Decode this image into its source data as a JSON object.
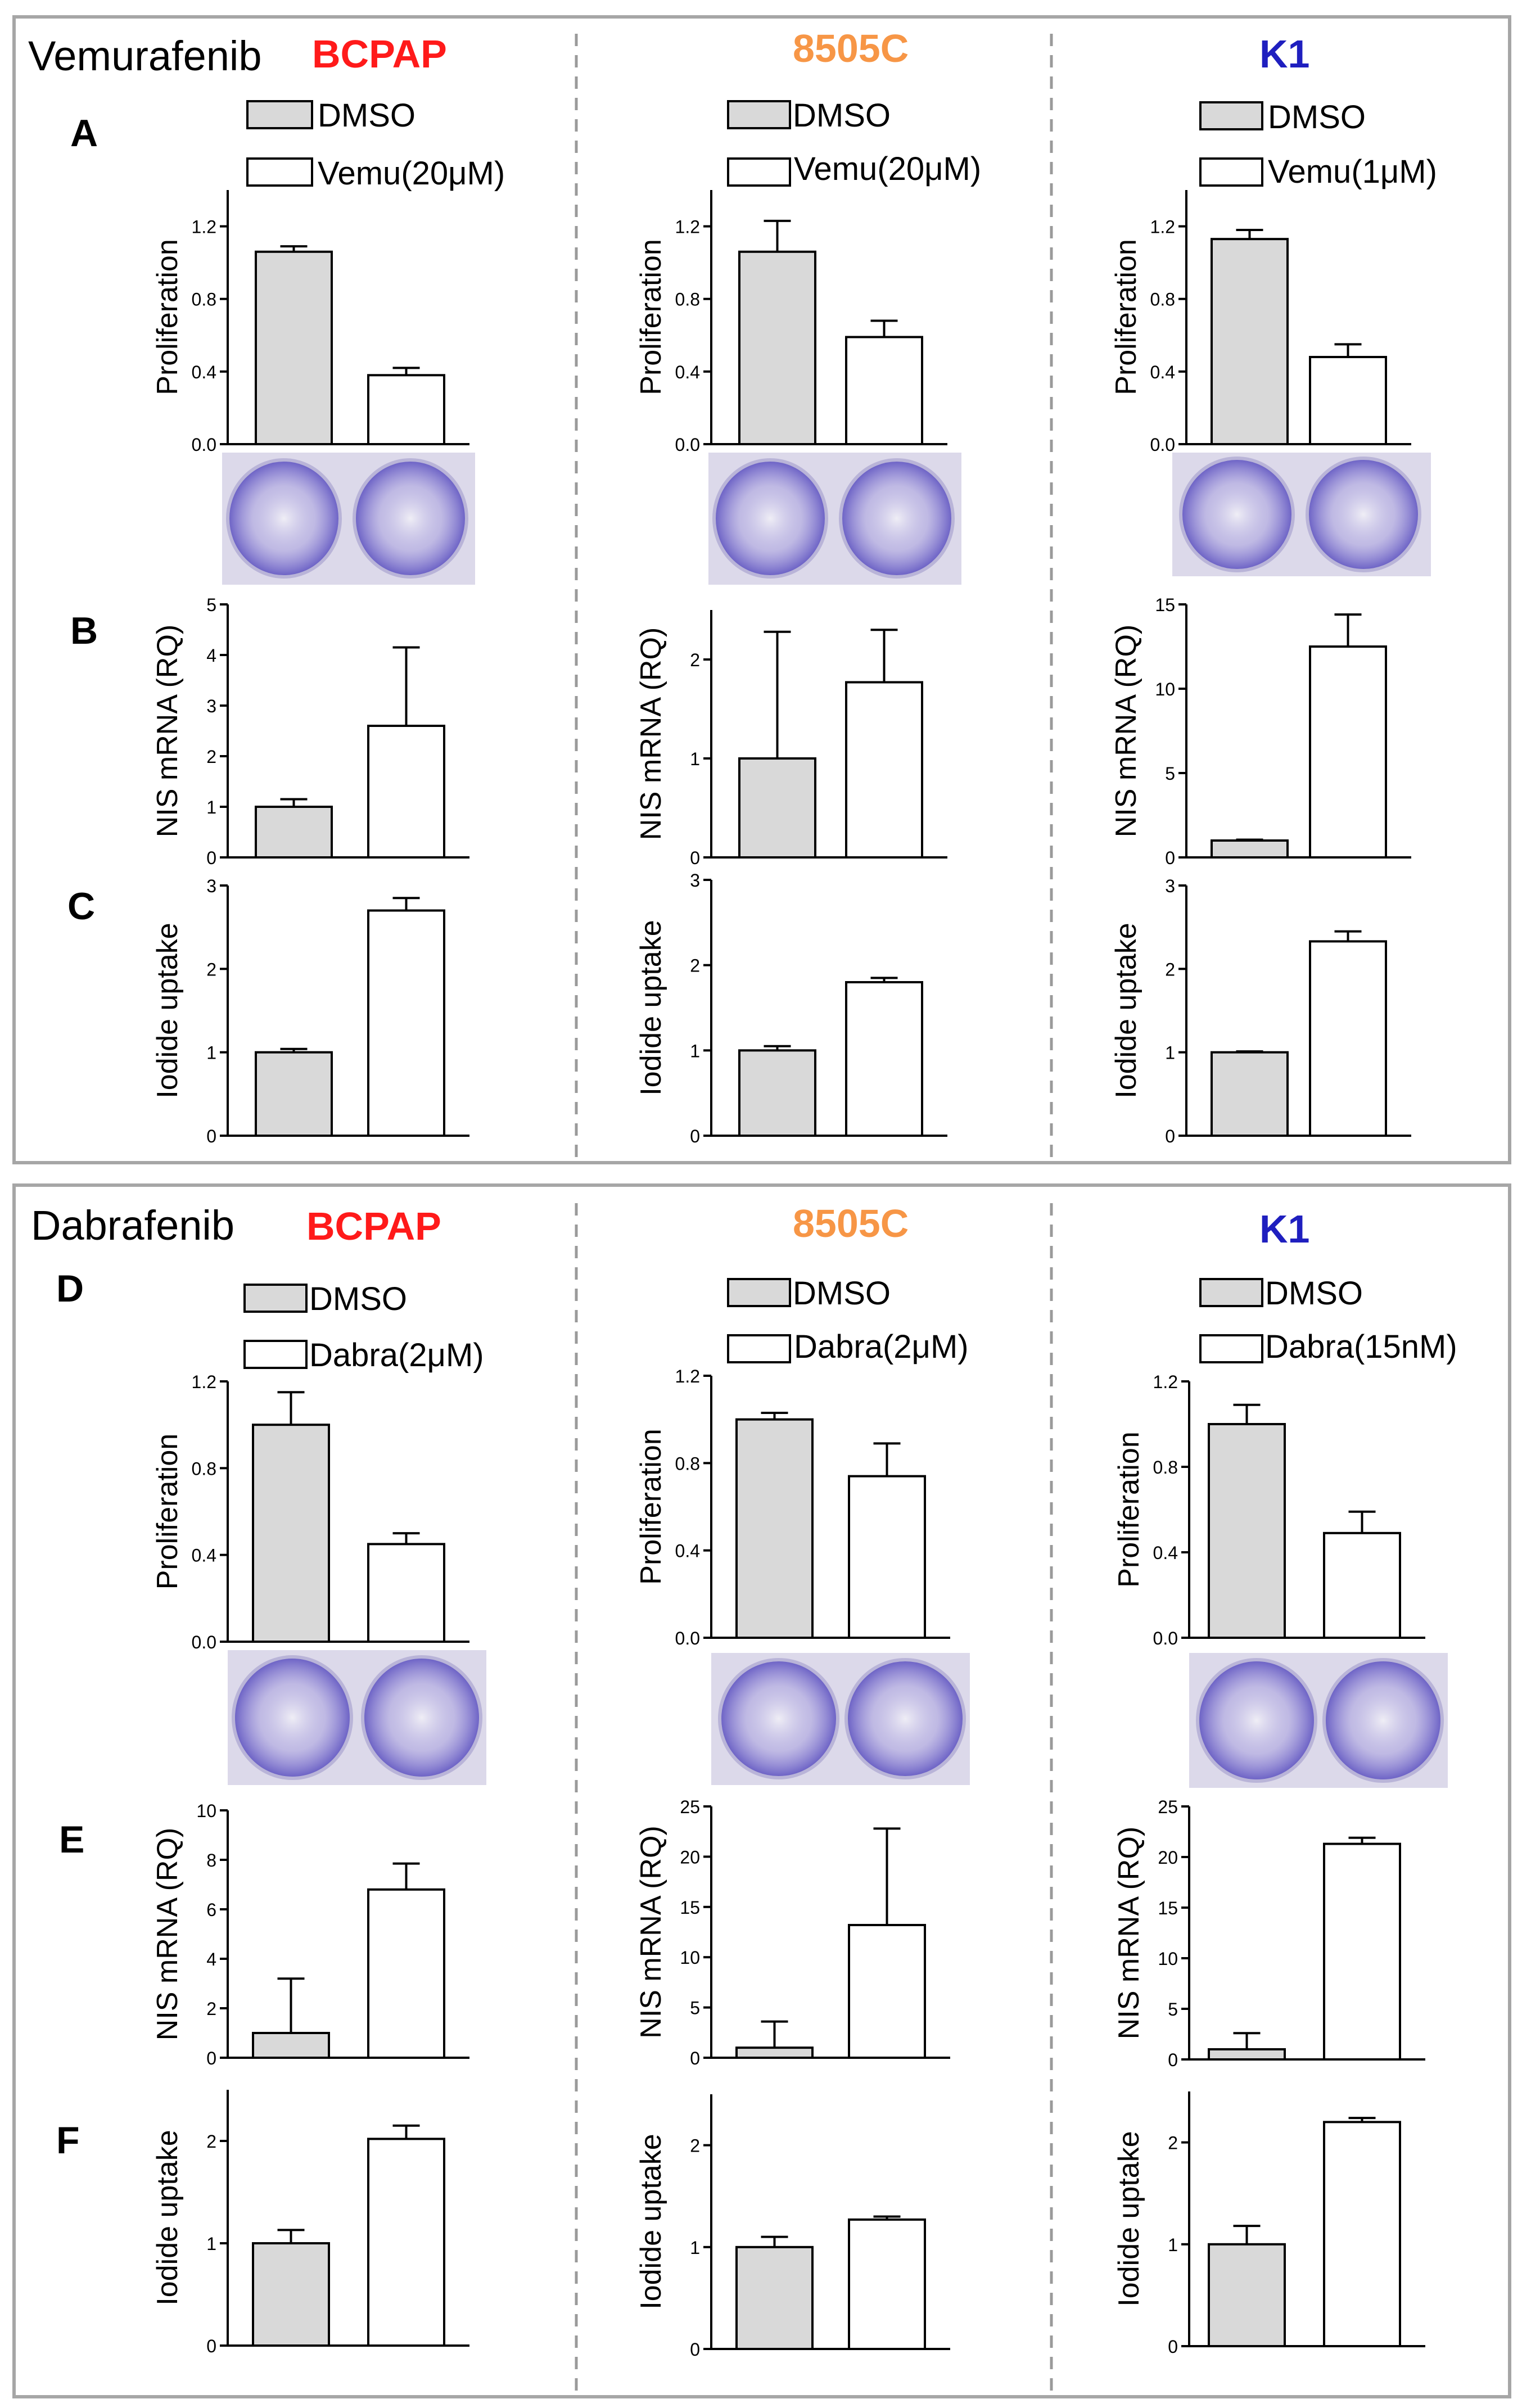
{
  "panels": [
    {
      "drug": "Vemurafenib",
      "columns": [
        {
          "cell_line": "BCPAP",
          "legend": [
            "DMSO",
            "Vemu(20μM)"
          ],
          "charts": [
            {
              "row": "A",
              "type": "bar",
              "ylabel": "Proliferation",
              "ylim": [
                0,
                1.4
              ],
              "ticks": [
                0.0,
                0.4,
                0.8,
                1.2
              ],
              "tick_labels": [
                "0.0",
                "0.4",
                "0.8",
                "1.2"
              ],
              "categories": [
                "DMSO",
                "Vemu(20μM)"
              ],
              "values": [
                1.06,
                0.38
              ],
              "errors": [
                0.03,
                0.04
              ]
            },
            {
              "row": "B",
              "type": "bar",
              "ylabel": "NIS mRNA (RQ)",
              "ylim": [
                0,
                5
              ],
              "ticks": [
                0,
                1,
                2,
                3,
                4,
                5
              ],
              "tick_labels": [
                "0",
                "1",
                "2",
                "3",
                "4",
                "5"
              ],
              "categories": [
                "DMSO",
                "Vemu(20μM)"
              ],
              "values": [
                1.0,
                2.6
              ],
              "errors": [
                0.15,
                1.55
              ]
            },
            {
              "row": "C",
              "type": "bar",
              "ylabel": "Iodide uptake",
              "ylim": [
                0,
                3
              ],
              "ticks": [
                0,
                1,
                2,
                3
              ],
              "tick_labels": [
                "0",
                "1",
                "2",
                "3"
              ],
              "categories": [
                "DMSO",
                "Vemu(20μM)"
              ],
              "values": [
                1.0,
                2.7
              ],
              "errors": [
                0.04,
                0.15
              ]
            }
          ]
        },
        {
          "cell_line": "8505C",
          "legend": [
            "DMSO",
            "Vemu(20μM)"
          ],
          "charts": [
            {
              "row": "A",
              "type": "bar",
              "ylabel": "Proliferation",
              "ylim": [
                0,
                1.4
              ],
              "ticks": [
                0.0,
                0.4,
                0.8,
                1.2
              ],
              "tick_labels": [
                "0.0",
                "0.4",
                "0.8",
                "1.2"
              ],
              "categories": [
                "DMSO",
                "Vemu(20μM)"
              ],
              "values": [
                1.06,
                0.59
              ],
              "errors": [
                0.17,
                0.09
              ]
            },
            {
              "row": "B",
              "type": "bar",
              "ylabel": "NIS mRNA (RQ)",
              "ylim": [
                0,
                2.5
              ],
              "ticks": [
                0,
                1,
                2
              ],
              "tick_labels": [
                "0",
                "1",
                "2"
              ],
              "categories": [
                "DMSO",
                "Vemu(20μM)"
              ],
              "values": [
                1.0,
                1.77
              ],
              "errors": [
                1.28,
                0.53
              ]
            },
            {
              "row": "C",
              "type": "bar",
              "ylabel": "Iodide uptake",
              "ylim": [
                0,
                3
              ],
              "ticks": [
                0,
                1,
                2,
                3
              ],
              "tick_labels": [
                "0",
                "1",
                "2",
                "3"
              ],
              "categories": [
                "DMSO",
                "Vemu(20μM)"
              ],
              "values": [
                1.0,
                1.8
              ],
              "errors": [
                0.05,
                0.05
              ]
            }
          ]
        },
        {
          "cell_line": "K1",
          "legend": [
            "DMSO",
            "Vemu(1μM)"
          ],
          "charts": [
            {
              "row": "A",
              "type": "bar",
              "ylabel": "Proliferation",
              "ylim": [
                0,
                1.4
              ],
              "ticks": [
                0.0,
                0.4,
                0.8,
                1.2
              ],
              "tick_labels": [
                "0.0",
                "0.4",
                "0.8",
                "1.2"
              ],
              "categories": [
                "DMSO",
                "Vemu(1μM)"
              ],
              "values": [
                1.13,
                0.48
              ],
              "errors": [
                0.05,
                0.07
              ]
            },
            {
              "row": "B",
              "type": "bar",
              "ylabel": "NIS mRNA (RQ)",
              "ylim": [
                0,
                15
              ],
              "ticks": [
                0,
                5,
                10,
                15
              ],
              "tick_labels": [
                "0",
                "5",
                "10",
                "15"
              ],
              "categories": [
                "DMSO",
                "Vemu(1μM)"
              ],
              "values": [
                1.0,
                12.5
              ],
              "errors": [
                0.05,
                1.9
              ]
            },
            {
              "row": "C",
              "type": "bar",
              "ylabel": "Iodide uptake",
              "ylim": [
                0,
                3
              ],
              "ticks": [
                0,
                1,
                2,
                3
              ],
              "tick_labels": [
                "0",
                "1",
                "2",
                "3"
              ],
              "categories": [
                "DMSO",
                "Vemu(1μM)"
              ],
              "values": [
                1.0,
                2.33
              ],
              "errors": [
                0.01,
                0.12
              ]
            }
          ]
        }
      ]
    },
    {
      "drug": "Dabrafenib",
      "columns": [
        {
          "cell_line": "BCPAP",
          "legend": [
            "DMSO",
            "Dabra(2μM)"
          ],
          "charts": [
            {
              "row": "D",
              "type": "bar",
              "ylabel": "Proliferation",
              "ylim": [
                0,
                1.2
              ],
              "ticks": [
                0.0,
                0.4,
                0.8,
                1.2
              ],
              "tick_labels": [
                "0.0",
                "0.4",
                "0.8",
                "1.2"
              ],
              "categories": [
                "DMSO",
                "Dabra(2μM)"
              ],
              "values": [
                1.0,
                0.45
              ],
              "errors": [
                0.15,
                0.05
              ]
            },
            {
              "row": "E",
              "type": "bar",
              "ylabel": "NIS mRNA (RQ)",
              "ylim": [
                0,
                10
              ],
              "ticks": [
                0,
                2,
                4,
                6,
                8,
                10
              ],
              "tick_labels": [
                "0",
                "2",
                "4",
                "6",
                "8",
                "10"
              ],
              "categories": [
                "DMSO",
                "Dabra(2μM)"
              ],
              "values": [
                1.0,
                6.8
              ],
              "errors": [
                2.2,
                1.05
              ]
            },
            {
              "row": "F",
              "type": "bar",
              "ylabel": "Iodide uptake",
              "ylim": [
                0,
                2.5
              ],
              "ticks": [
                0,
                1,
                2
              ],
              "tick_labels": [
                "0",
                "1",
                "2"
              ],
              "categories": [
                "DMSO",
                "Dabra(2μM)"
              ],
              "values": [
                1.0,
                2.02
              ],
              "errors": [
                0.13,
                0.13
              ]
            }
          ]
        },
        {
          "cell_line": "8505C",
          "legend": [
            "DMSO",
            "Dabra(2μM)"
          ],
          "charts": [
            {
              "row": "D",
              "type": "bar",
              "ylabel": "Proliferation",
              "ylim": [
                0,
                1.2
              ],
              "ticks": [
                0.0,
                0.4,
                0.8,
                1.2
              ],
              "tick_labels": [
                "0.0",
                "0.4",
                "0.8",
                "1.2"
              ],
              "categories": [
                "DMSO",
                "Dabra(2μM)"
              ],
              "values": [
                1.0,
                0.74
              ],
              "errors": [
                0.03,
                0.15
              ]
            },
            {
              "row": "E",
              "type": "bar",
              "ylabel": "NIS mRNA (RQ)",
              "ylim": [
                0,
                25
              ],
              "ticks": [
                0,
                5,
                10,
                15,
                20,
                25
              ],
              "tick_labels": [
                "0",
                "5",
                "10",
                "15",
                "20",
                "25"
              ],
              "categories": [
                "DMSO",
                "Dabra(2μM)"
              ],
              "values": [
                1.0,
                13.2
              ],
              "errors": [
                2.6,
                9.6
              ]
            },
            {
              "row": "F",
              "type": "bar",
              "ylabel": "Iodide uptake",
              "ylim": [
                0,
                2.5
              ],
              "ticks": [
                0,
                1,
                2
              ],
              "tick_labels": [
                "0",
                "1",
                "2"
              ],
              "categories": [
                "DMSO",
                "Dabra(2μM)"
              ],
              "values": [
                1.0,
                1.27
              ],
              "errors": [
                0.1,
                0.03
              ]
            }
          ]
        },
        {
          "cell_line": "K1",
          "legend": [
            "DMSO",
            "Dabra(15nM)"
          ],
          "charts": [
            {
              "row": "D",
              "type": "bar",
              "ylabel": "Proliferation",
              "ylim": [
                0,
                1.2
              ],
              "ticks": [
                0.0,
                0.4,
                0.8,
                1.2
              ],
              "tick_labels": [
                "0.0",
                "0.4",
                "0.8",
                "1.2"
              ],
              "categories": [
                "DMSO",
                "Dabra(15nM)"
              ],
              "values": [
                1.0,
                0.49
              ],
              "errors": [
                0.09,
                0.1
              ]
            },
            {
              "row": "E",
              "type": "bar",
              "ylabel": "NIS mRNA (RQ)",
              "ylim": [
                0,
                25
              ],
              "ticks": [
                0,
                5,
                10,
                15,
                20,
                25
              ],
              "tick_labels": [
                "0",
                "5",
                "10",
                "15",
                "20",
                "25"
              ],
              "categories": [
                "DMSO",
                "Dabra(15nM)"
              ],
              "values": [
                1.0,
                21.3
              ],
              "errors": [
                1.6,
                0.6
              ]
            },
            {
              "row": "F",
              "type": "bar",
              "ylabel": "Iodide uptake",
              "ylim": [
                0,
                2.5
              ],
              "ticks": [
                0,
                1,
                2
              ],
              "tick_labels": [
                "0",
                "1",
                "2"
              ],
              "categories": [
                "DMSO",
                "Dabra(15nM)"
              ],
              "values": [
                1.0,
                2.2
              ],
              "errors": [
                0.18,
                0.04
              ]
            }
          ]
        }
      ]
    }
  ],
  "colors": {
    "BCPAP": "#ff1a1a",
    "8505C": "#f79646",
    "K1": "#1f1fbf",
    "dmso_fill": "#d9d9d9",
    "treatment_fill": "#ffffff",
    "frame": "#a6a6a6",
    "plate_purple": "#6b5fc9",
    "plate_bg": "#dcd9ea"
  },
  "chart_data": [
    {
      "type": "bar",
      "title": "Vemurafenib BCPAP A",
      "ylabel": "Proliferation",
      "categories": [
        "DMSO",
        "Vemu(20μM)"
      ],
      "values": [
        1.06,
        0.38
      ],
      "ylim": [
        0,
        1.4
      ]
    },
    {
      "type": "bar",
      "title": "Vemurafenib BCPAP B",
      "ylabel": "NIS mRNA (RQ)",
      "categories": [
        "DMSO",
        "Vemu(20μM)"
      ],
      "values": [
        1.0,
        2.6
      ],
      "ylim": [
        0,
        5
      ]
    },
    {
      "type": "bar",
      "title": "Vemurafenib BCPAP C",
      "ylabel": "Iodide uptake",
      "categories": [
        "DMSO",
        "Vemu(20μM)"
      ],
      "values": [
        1.0,
        2.7
      ],
      "ylim": [
        0,
        3
      ]
    },
    {
      "type": "bar",
      "title": "Vemurafenib 8505C A",
      "ylabel": "Proliferation",
      "categories": [
        "DMSO",
        "Vemu(20μM)"
      ],
      "values": [
        1.06,
        0.59
      ],
      "ylim": [
        0,
        1.4
      ]
    },
    {
      "type": "bar",
      "title": "Vemurafenib 8505C B",
      "ylabel": "NIS mRNA (RQ)",
      "categories": [
        "DMSO",
        "Vemu(20μM)"
      ],
      "values": [
        1.0,
        1.77
      ],
      "ylim": [
        0,
        2.5
      ]
    },
    {
      "type": "bar",
      "title": "Vemurafenib 8505C C",
      "ylabel": "Iodide uptake",
      "categories": [
        "DMSO",
        "Vemu(20μM)"
      ],
      "values": [
        1.0,
        1.8
      ],
      "ylim": [
        0,
        3
      ]
    },
    {
      "type": "bar",
      "title": "Vemurafenib K1 A",
      "ylabel": "Proliferation",
      "categories": [
        "DMSO",
        "Vemu(1μM)"
      ],
      "values": [
        1.13,
        0.48
      ],
      "ylim": [
        0,
        1.4
      ]
    },
    {
      "type": "bar",
      "title": "Vemurafenib K1 B",
      "ylabel": "NIS mRNA (RQ)",
      "categories": [
        "DMSO",
        "Vemu(1μM)"
      ],
      "values": [
        1.0,
        12.5
      ],
      "ylim": [
        0,
        15
      ]
    },
    {
      "type": "bar",
      "title": "Vemurafenib K1 C",
      "ylabel": "Iodide uptake",
      "categories": [
        "DMSO",
        "Vemu(1μM)"
      ],
      "values": [
        1.0,
        2.33
      ],
      "ylim": [
        0,
        3
      ]
    },
    {
      "type": "bar",
      "title": "Dabrafenib BCPAP D",
      "ylabel": "Proliferation",
      "categories": [
        "DMSO",
        "Dabra(2μM)"
      ],
      "values": [
        1.0,
        0.45
      ],
      "ylim": [
        0,
        1.2
      ]
    },
    {
      "type": "bar",
      "title": "Dabrafenib BCPAP E",
      "ylabel": "NIS mRNA (RQ)",
      "categories": [
        "DMSO",
        "Dabra(2μM)"
      ],
      "values": [
        1.0,
        6.8
      ],
      "ylim": [
        0,
        10
      ]
    },
    {
      "type": "bar",
      "title": "Dabrafenib BCPAP F",
      "ylabel": "Iodide uptake",
      "categories": [
        "DMSO",
        "Dabra(2μM)"
      ],
      "values": [
        1.0,
        2.02
      ],
      "ylim": [
        0,
        2.5
      ]
    },
    {
      "type": "bar",
      "title": "Dabrafenib 8505C D",
      "ylabel": "Proliferation",
      "categories": [
        "DMSO",
        "Dabra(2μM)"
      ],
      "values": [
        1.0,
        0.74
      ],
      "ylim": [
        0,
        1.2
      ]
    },
    {
      "type": "bar",
      "title": "Dabrafenib 8505C E",
      "ylabel": "NIS mRNA (RQ)",
      "categories": [
        "DMSO",
        "Dabra(2μM)"
      ],
      "values": [
        1.0,
        13.2
      ],
      "ylim": [
        0,
        25
      ]
    },
    {
      "type": "bar",
      "title": "Dabrafenib 8505C F",
      "ylabel": "Iodide uptake",
      "categories": [
        "DMSO",
        "Dabra(2μM)"
      ],
      "values": [
        1.0,
        1.27
      ],
      "ylim": [
        0,
        2.5
      ]
    },
    {
      "type": "bar",
      "title": "Dabrafenib K1 D",
      "ylabel": "Proliferation",
      "categories": [
        "DMSO",
        "Dabra(15nM)"
      ],
      "values": [
        1.0,
        0.49
      ],
      "ylim": [
        0,
        1.2
      ]
    },
    {
      "type": "bar",
      "title": "Dabrafenib K1 E",
      "ylabel": "NIS mRNA (RQ)",
      "categories": [
        "DMSO",
        "Dabra(15nM)"
      ],
      "values": [
        1.0,
        21.3
      ],
      "ylim": [
        0,
        25
      ]
    },
    {
      "type": "bar",
      "title": "Dabrafenib K1 F",
      "ylabel": "Iodide uptake",
      "categories": [
        "DMSO",
        "Dabra(15nM)"
      ],
      "values": [
        1.0,
        2.2
      ],
      "ylim": [
        0,
        2.5
      ]
    }
  ]
}
